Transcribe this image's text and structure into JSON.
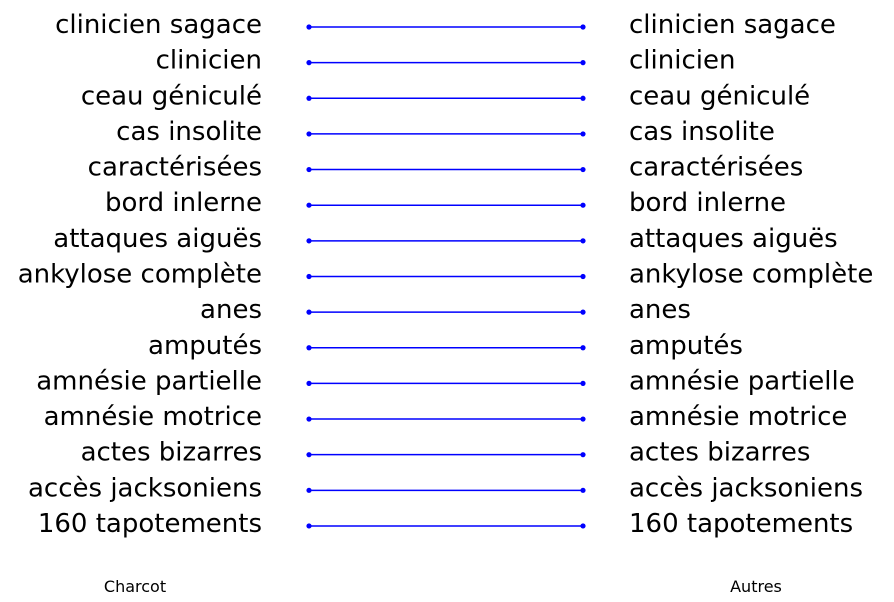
{
  "chart_data": {
    "type": "slope",
    "left_label": "Charcot",
    "right_label": "Autres",
    "line_color": "#0000ff",
    "text_color": "#000000",
    "terms_left": [
      "clinicien sagace",
      "clinicien",
      "ceau géniculé",
      "cas insolite",
      "caractérisées",
      "bord inlerne",
      "attaques aiguës",
      "ankylose complète",
      "anes",
      "amputés",
      "amnésie partielle",
      "amnésie motrice",
      "actes bizarres",
      "accès jacksoniens",
      "160 tapotements"
    ],
    "terms_right": [
      "clinicien sagace",
      "clinicien",
      "ceau géniculé",
      "cas insolite",
      "caractérisées",
      "bord inlerne",
      "attaques aiguës",
      "ankylose complète",
      "anes",
      "amputés",
      "amnésie partielle",
      "amnésie motrice",
      "actes bizarres",
      "accès jacksoniens",
      "160 tapotements"
    ],
    "links": [
      {
        "from": 0,
        "to": 0
      },
      {
        "from": 1,
        "to": 1
      },
      {
        "from": 2,
        "to": 2
      },
      {
        "from": 3,
        "to": 3
      },
      {
        "from": 4,
        "to": 4
      },
      {
        "from": 5,
        "to": 5
      },
      {
        "from": 6,
        "to": 6
      },
      {
        "from": 7,
        "to": 7
      },
      {
        "from": 8,
        "to": 8
      },
      {
        "from": 9,
        "to": 9
      },
      {
        "from": 10,
        "to": 10
      },
      {
        "from": 11,
        "to": 11
      },
      {
        "from": 12,
        "to": 12
      },
      {
        "from": 13,
        "to": 13
      },
      {
        "from": 14,
        "to": 14
      }
    ]
  }
}
